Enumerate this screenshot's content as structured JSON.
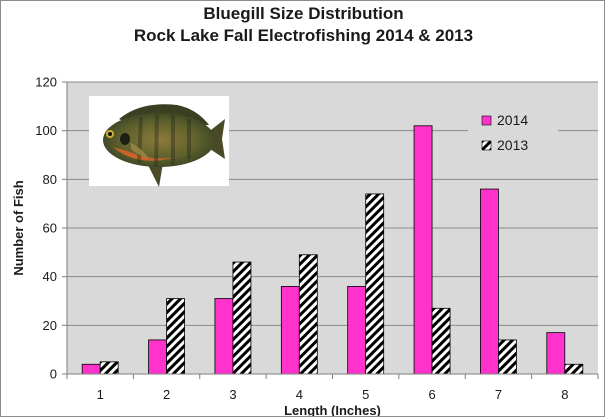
{
  "chart_data": {
    "type": "bar",
    "title": [
      "Bluegill Size Distribution",
      "Rock Lake Fall Electrofishing 2014 & 2013"
    ],
    "xlabel": "Length (Inches)",
    "ylabel": "Number of Fish",
    "categories": [
      "1",
      "2",
      "3",
      "4",
      "5",
      "6",
      "7",
      "8"
    ],
    "series": [
      {
        "name": "2014",
        "values": [
          4,
          14,
          31,
          36,
          36,
          102,
          76,
          17
        ],
        "color": "#ff33cc",
        "pattern": "solid"
      },
      {
        "name": "2013",
        "values": [
          5,
          31,
          46,
          49,
          74,
          27,
          14,
          4
        ],
        "color": "#000000",
        "pattern": "diagonal-hatch"
      }
    ],
    "ylim": [
      0,
      120
    ],
    "yticks": [
      0,
      20,
      40,
      60,
      80,
      100,
      120
    ],
    "grid": true,
    "plot_background": "#d9d9d9",
    "legend_position": "top-right",
    "image": "bluegill-fish-photo"
  }
}
